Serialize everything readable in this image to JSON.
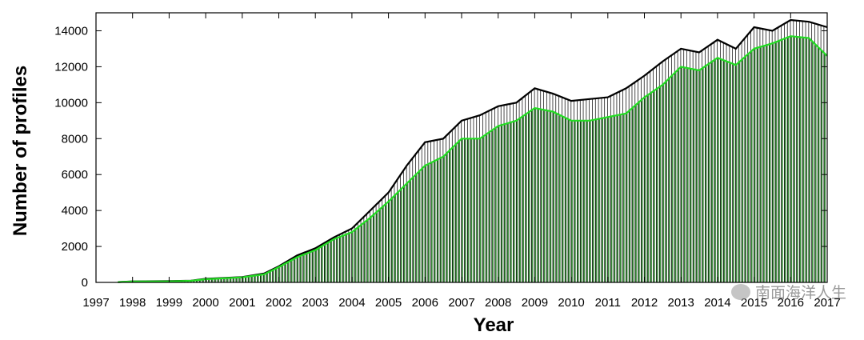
{
  "chart_data": {
    "type": "bar",
    "title": "",
    "xlabel": "Year",
    "ylabel": "Number of profiles",
    "xlim": [
      1997,
      2017
    ],
    "ylim": [
      0,
      15000
    ],
    "x_ticks": [
      "1997",
      "1998",
      "1999",
      "2000",
      "2001",
      "2002",
      "2003",
      "2004",
      "2005",
      "2006",
      "2007",
      "2008",
      "2009",
      "2010",
      "2011",
      "2012",
      "2013",
      "2014",
      "2015",
      "2016",
      "2017"
    ],
    "y_ticks": [
      0,
      2000,
      4000,
      6000,
      8000,
      10000,
      12000,
      14000
    ],
    "grid": false,
    "legend": "none",
    "series": [
      {
        "role": "total",
        "color": "#000000",
        "x": [
          1997.6,
          1998.0,
          1999.0,
          1999.6,
          2000.0,
          2001.0,
          2001.6,
          2002.0,
          2002.5,
          2003.0,
          2003.5,
          2004.0,
          2004.5,
          2005.0,
          2005.5,
          2006.0,
          2006.5,
          2007.0,
          2007.5,
          2008.0,
          2008.5,
          2009.0,
          2009.5,
          2010.0,
          2010.5,
          2011.0,
          2011.5,
          2012.0,
          2012.5,
          2013.0,
          2013.5,
          2014.0,
          2014.5,
          2015.0,
          2015.5,
          2016.0,
          2016.5,
          2017.0
        ],
        "values": [
          20,
          60,
          70,
          100,
          200,
          300,
          500,
          900,
          1500,
          1900,
          2500,
          3000,
          4000,
          5000,
          6500,
          7800,
          8000,
          9000,
          9300,
          9800,
          10000,
          10800,
          10500,
          10100,
          10200,
          10300,
          10800,
          11500,
          12300,
          13000,
          12800,
          13500,
          13000,
          14200,
          14000,
          14600,
          14500,
          14200
        ]
      },
      {
        "role": "subset",
        "color": "#22dd22",
        "x": [
          1997.6,
          1998.0,
          1999.0,
          1999.6,
          2000.0,
          2001.0,
          2001.6,
          2002.0,
          2002.5,
          2003.0,
          2003.5,
          2004.0,
          2004.5,
          2005.0,
          2005.5,
          2006.0,
          2006.5,
          2007.0,
          2007.5,
          2008.0,
          2008.5,
          2009.0,
          2009.5,
          2010.0,
          2010.5,
          2011.0,
          2011.5,
          2012.0,
          2012.5,
          2013.0,
          2013.5,
          2014.0,
          2014.5,
          2015.0,
          2015.5,
          2016.0,
          2016.5,
          2017.0
        ],
        "values": [
          20,
          50,
          60,
          90,
          180,
          280,
          450,
          850,
          1400,
          1800,
          2400,
          2800,
          3600,
          4500,
          5500,
          6500,
          7000,
          8000,
          8000,
          8700,
          9000,
          9700,
          9500,
          9000,
          9000,
          9200,
          9400,
          10300,
          11000,
          12000,
          11800,
          12500,
          12100,
          13000,
          13300,
          13700,
          13600,
          12600
        ]
      }
    ]
  },
  "watermark": {
    "text": "南面海洋人生"
  }
}
